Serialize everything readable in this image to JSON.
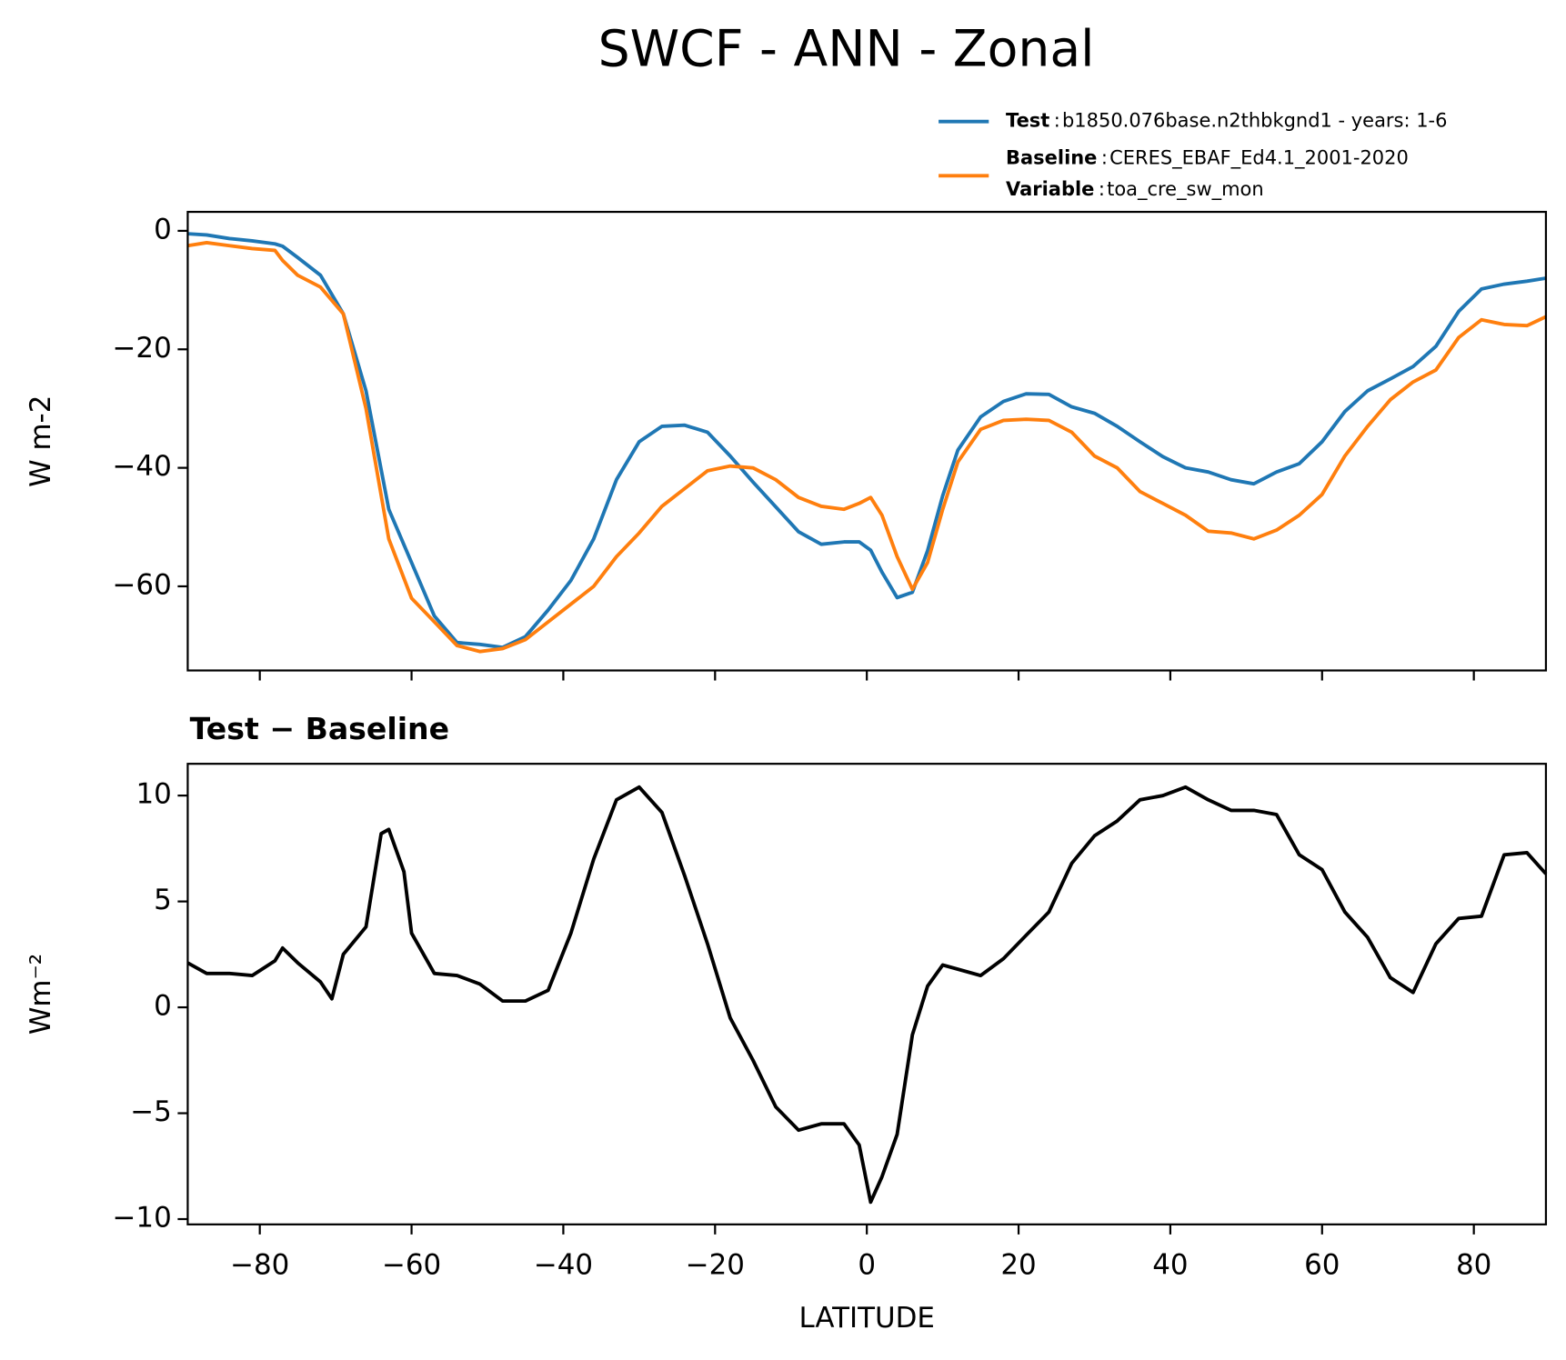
{
  "title": "SWCF - ANN - Zonal",
  "chart_data": [
    {
      "type": "line",
      "ylabel": "W m-2",
      "legend_separator": ":",
      "x": [
        -89.5,
        -87,
        -84,
        -81,
        -78,
        -77,
        -75,
        -72,
        -69,
        -66,
        -63,
        -60,
        -57,
        -54,
        -51,
        -48,
        -45,
        -42,
        -39,
        -36,
        -33,
        -30,
        -27,
        -24,
        -21,
        -18,
        -15,
        -12,
        -9,
        -6,
        -3,
        -1,
        0.5,
        2,
        4,
        6,
        8,
        10,
        12,
        15,
        18,
        21,
        24,
        27,
        30,
        33,
        36,
        39,
        42,
        45,
        48,
        51,
        54,
        57,
        60,
        63,
        66,
        69,
        72,
        75,
        78,
        81,
        84,
        87,
        89.5
      ],
      "series": [
        {
          "name": "Test",
          "description": "b1850.076base.n2thbkgnd1 - years: 1-6",
          "color": "#1f77b4",
          "values": [
            -0.5,
            -0.7,
            -1.3,
            -1.7,
            -2.2,
            -2.6,
            -4.5,
            -7.5,
            -14,
            -27,
            -47,
            -56,
            -65,
            -69.5,
            -69.8,
            -70.3,
            -68.5,
            -64,
            -59,
            -52,
            -42,
            -35.6,
            -33,
            -32.8,
            -34,
            -38,
            -42.4,
            -46.6,
            -50.8,
            -52.9,
            -52.5,
            -52.5,
            -53.9,
            -57.6,
            -61.9,
            -61,
            -54,
            -44.7,
            -37,
            -31.4,
            -28.8,
            -27.5,
            -27.6,
            -29.7,
            -30.8,
            -33,
            -35.6,
            -38.1,
            -40,
            -40.7,
            -42,
            -42.7,
            -40.7,
            -39.3,
            -35.6,
            -30.5,
            -27,
            -25,
            -22.9,
            -19.5,
            -13.6,
            -9.8,
            -9,
            -8.5,
            -8
          ]
        },
        {
          "name": "Baseline",
          "description": "CERES_EBAF_Ed4.1_2001-2020",
          "color": "#ff7f0e",
          "values": [
            -2.5,
            -2,
            -2.5,
            -3,
            -3.3,
            -5,
            -7.5,
            -9.5,
            -14,
            -30,
            -52,
            -62,
            -66,
            -70,
            -71,
            -70.5,
            -69,
            -66,
            -63,
            -60,
            -55,
            -51,
            -46.5,
            -43.5,
            -40.5,
            -39.7,
            -40,
            -42,
            -45,
            -46.5,
            -47,
            -46,
            -45,
            -48,
            -55,
            -60.5,
            -56,
            -47,
            -39,
            -33.5,
            -32,
            -31.8,
            -32,
            -34,
            -38,
            -40,
            -44,
            -46,
            -48,
            -50.7,
            -51,
            -52,
            -50.5,
            -48,
            -44.5,
            -38,
            -33,
            -28.5,
            -25.5,
            -23.5,
            -18,
            -15,
            -15.8,
            -16,
            -14.5
          ]
        }
      ],
      "legend_extra": {
        "name": "Variable",
        "description": "toa_cre_sw_mon"
      },
      "xlim": [
        -89.5,
        89.5
      ],
      "xticks": [
        {
          "value": -80,
          "label": "−80"
        },
        {
          "value": -60,
          "label": "−60"
        },
        {
          "value": -40,
          "label": "−40"
        },
        {
          "value": -20,
          "label": "−20"
        },
        0,
        20,
        40,
        60,
        80
      ],
      "ylim": [
        -74.2,
        3.2
      ],
      "yticks": [
        0,
        {
          "value": -20,
          "label": "−20"
        },
        {
          "value": -40,
          "label": "−40"
        },
        {
          "value": -60,
          "label": "−60"
        }
      ]
    },
    {
      "type": "line",
      "title": "Test − Baseline",
      "ylabel": "Wm⁻²",
      "xlabel": "LATITUDE",
      "x": [
        -89.5,
        -87,
        -84,
        -81,
        -78,
        -77,
        -75,
        -72,
        -70.5,
        -69,
        -66,
        -64,
        -63,
        -61,
        -60,
        -57,
        -54,
        -51,
        -48,
        -45,
        -42,
        -39,
        -36,
        -33,
        -30,
        -27,
        -24,
        -21,
        -18,
        -15,
        -12,
        -9,
        -6,
        -3,
        -1,
        0.5,
        2,
        4,
        6,
        8,
        10,
        12,
        15,
        18,
        21,
        24,
        27,
        30,
        33,
        36,
        39,
        42,
        45,
        48,
        51,
        54,
        57,
        60,
        63,
        66,
        69,
        72,
        75,
        78,
        81,
        84,
        87,
        89.5
      ],
      "series": [
        {
          "color": "#000000",
          "values": [
            2.1,
            1.6,
            1.6,
            1.5,
            2.2,
            2.8,
            2.1,
            1.2,
            0.4,
            2.5,
            3.8,
            8.2,
            8.4,
            6.4,
            3.5,
            1.6,
            1.5,
            1.1,
            0.3,
            0.3,
            0.8,
            3.5,
            7,
            9.8,
            10.4,
            9.2,
            6.2,
            3,
            -0.5,
            -2.5,
            -4.7,
            -5.8,
            -5.5,
            -5.5,
            -6.5,
            -9.2,
            -8,
            -6,
            -1.3,
            1,
            2,
            1.8,
            1.5,
            2.3,
            3.4,
            4.5,
            6.8,
            8.1,
            8.8,
            9.8,
            10,
            10.4,
            9.8,
            9.3,
            9.3,
            9.1,
            7.2,
            6.5,
            4.5,
            3.3,
            1.4,
            0.7,
            3,
            4.2,
            4.3,
            7.2,
            7.3,
            6.3
          ]
        }
      ],
      "xlim": [
        -89.5,
        89.5
      ],
      "xticks": [
        {
          "value": -80,
          "label": "−80"
        },
        {
          "value": -60,
          "label": "−60"
        },
        {
          "value": -40,
          "label": "−40"
        },
        {
          "value": -20,
          "label": "−20"
        },
        0,
        20,
        40,
        60,
        80
      ],
      "ylim": [
        -10.25,
        11.5
      ],
      "yticks": [
        {
          "value": -10,
          "label": "−10"
        },
        {
          "value": -5,
          "label": "−5"
        },
        0,
        5,
        10
      ]
    }
  ]
}
